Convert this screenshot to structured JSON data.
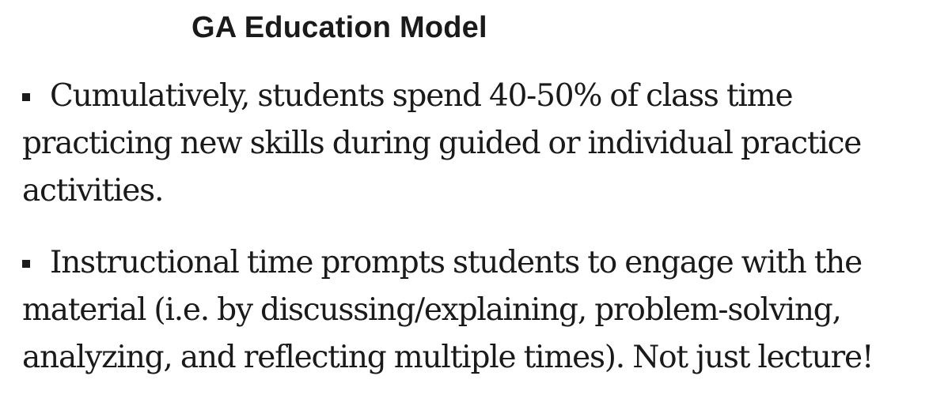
{
  "slide": {
    "title": "GA Education Model",
    "bullets": [
      {
        "text": "Cumulatively, students spend 40-50% of class time practicing new skills during guided or individual practice activities."
      },
      {
        "text": "Instructional time prompts students to engage with the material (i.e. by discussing/explaining, problem-solving, analyzing, and reflecting multiple times). Not just lecture!"
      }
    ]
  }
}
